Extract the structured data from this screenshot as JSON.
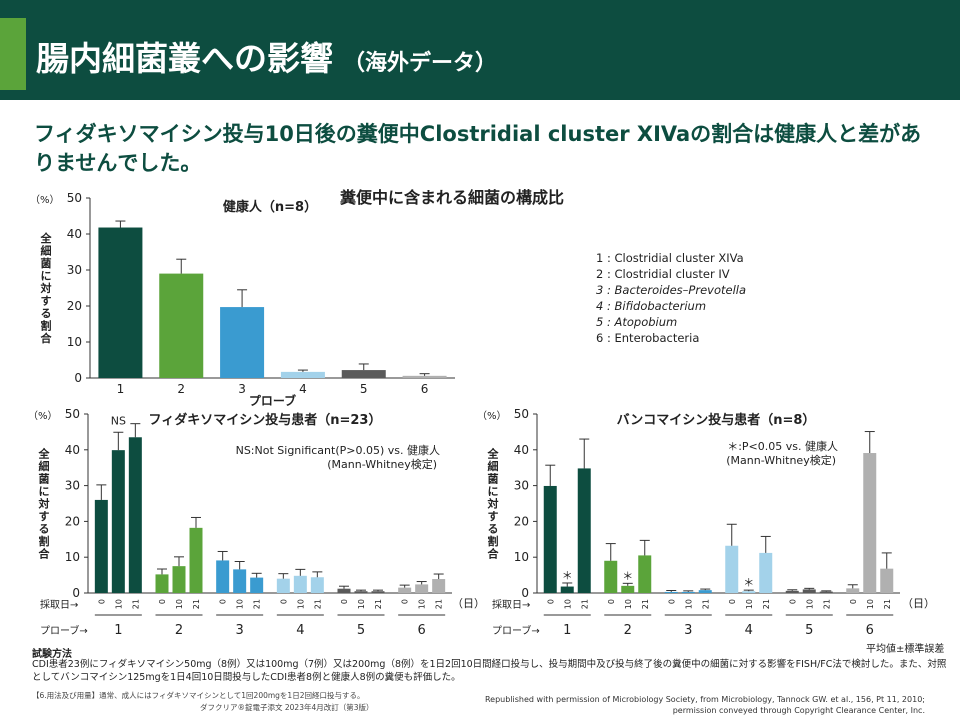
{
  "header": {
    "title": "腸内細菌叢への影響",
    "subtitle": "（海外データ）"
  },
  "headline": "フィダキソマイシン投与10日後の糞便中Clostridial cluster XIVaの割合は健康人と差がありませんでした。",
  "center_title": "糞便中に含まれる細菌の構成比",
  "legend_lines": [
    "1 : Clostridial  cluster XIVa",
    "2 : Clostridial  cluster IV",
    "3 : Bacteroides–Prevotella",
    "4 : Bifidobacterium",
    "5 : Atopobium",
    "6 : Enterobacteria"
  ],
  "labels": {
    "unit": "（%）",
    "ylabel": "全細菌に対する割合",
    "probe_axis": "プローブ",
    "sampling_day": "採取日→",
    "probe_arrow": "プローブ→",
    "day_unit": "（日）",
    "mean_note": "平均値±標準誤差"
  },
  "method": {
    "title": "試験方法",
    "text": "CDI患者23例にフィダキソマイシン50mg（8例）又は100mg（7例）又は200mg（8例）を1日2回10日間経口投与し、投与期間中及び投与終了後の糞便中の細菌に対する影響をFISH/FC法で検討した。また、対照としてバンコマイシン125mgを1日4回10日間投与したCDI患者8例と健康人8例の糞便も評価した。"
  },
  "footer": {
    "dosage": "【6.用法及び用量】通常、成人にはフィダキソマイシンとして1回200mgを1日2回経口投与する。",
    "package": "ダフクリア®錠電子添文 2023年4月改訂（第3版）",
    "permission_1": "Republished with permission of Microbiology Society, from Microbiology, Tannock GW. et al., 156, Pt 11, 2010;",
    "permission_2": "permission conveyed through Copyright Clearance Center, Inc."
  },
  "colors": {
    "p1": "#0d4d40",
    "p2": "#5ba43a",
    "p3": "#3a9bd0",
    "p4": "#a3d2ea",
    "p5": "#5a5a5a",
    "p6": "#b0b0b0"
  },
  "chart_data": [
    {
      "type": "bar",
      "title": "健康人（n=8）",
      "xlabel": "プローブ",
      "ylabel": "全細菌に対する割合",
      "ylim": [
        0,
        50
      ],
      "yticks": [
        0,
        10,
        20,
        30,
        40,
        50
      ],
      "categories": [
        "1",
        "2",
        "3",
        "4",
        "5",
        "6"
      ],
      "values": [
        41.8,
        29.0,
        19.7,
        1.7,
        2.2,
        0.6
      ],
      "errors": [
        1.8,
        4.0,
        4.8,
        0.5,
        1.7,
        0.6
      ]
    },
    {
      "type": "bar",
      "title": "フィダキソマイシン投与患者（n=23）",
      "ylabel": "全細菌に対する割合",
      "ylim": [
        0,
        50
      ],
      "yticks": [
        0,
        10,
        20,
        30,
        40,
        50
      ],
      "categories": [
        "1",
        "2",
        "3",
        "4",
        "5",
        "6"
      ],
      "days": [
        "0",
        "10",
        "21"
      ],
      "values": [
        [
          26.0,
          39.9,
          43.5
        ],
        [
          5.2,
          7.5,
          18.2
        ],
        [
          9.1,
          6.6,
          4.3
        ],
        [
          4.0,
          4.8,
          4.4
        ],
        [
          1.2,
          0.5,
          0.5
        ],
        [
          1.5,
          2.4,
          3.9
        ]
      ],
      "errors": [
        [
          4.2,
          5.0,
          3.8
        ],
        [
          1.5,
          2.6,
          2.9
        ],
        [
          2.5,
          2.2,
          1.2
        ],
        [
          1.4,
          1.8,
          1.5
        ],
        [
          0.7,
          0.3,
          0.3
        ],
        [
          0.7,
          0.8,
          1.4
        ]
      ],
      "annotations": {
        "ns_mark": "NS",
        "note_1": "NS:Not Significant(P>0.05)  vs. 健康人",
        "note_2": "(Mann-Whitney検定)"
      }
    },
    {
      "type": "bar",
      "title": "バンコマイシン投与患者（n=8）",
      "ylabel": "全細菌に対する割合",
      "ylim": [
        0,
        50
      ],
      "yticks": [
        0,
        10,
        20,
        30,
        40,
        50
      ],
      "categories": [
        "1",
        "2",
        "3",
        "4",
        "5",
        "6"
      ],
      "days": [
        "0",
        "10",
        "21"
      ],
      "values": [
        [
          29.9,
          1.8,
          34.8
        ],
        [
          9.0,
          2.0,
          10.5
        ],
        [
          0.3,
          0.3,
          0.8
        ],
        [
          13.2,
          0.5,
          11.2
        ],
        [
          0.6,
          1.0,
          0.4
        ],
        [
          1.3,
          39.1,
          6.8
        ]
      ],
      "errors": [
        [
          5.8,
          1.0,
          8.2
        ],
        [
          4.8,
          0.7,
          4.2
        ],
        [
          0.4,
          0.3,
          0.3
        ],
        [
          6.0,
          0.3,
          4.6
        ],
        [
          0.3,
          0.3,
          0.2
        ],
        [
          1.0,
          6.0,
          4.4
        ]
      ],
      "significance": [
        [
          false,
          true,
          false
        ],
        [
          false,
          true,
          false
        ],
        [
          false,
          false,
          false
        ],
        [
          false,
          true,
          false
        ],
        [
          false,
          false,
          false
        ],
        [
          false,
          false,
          false
        ]
      ],
      "annotations": {
        "sig_mark": "＊",
        "note_1": "＊:P<0.05  vs. 健康人",
        "note_2": "(Mann-Whitney検定)"
      }
    }
  ]
}
